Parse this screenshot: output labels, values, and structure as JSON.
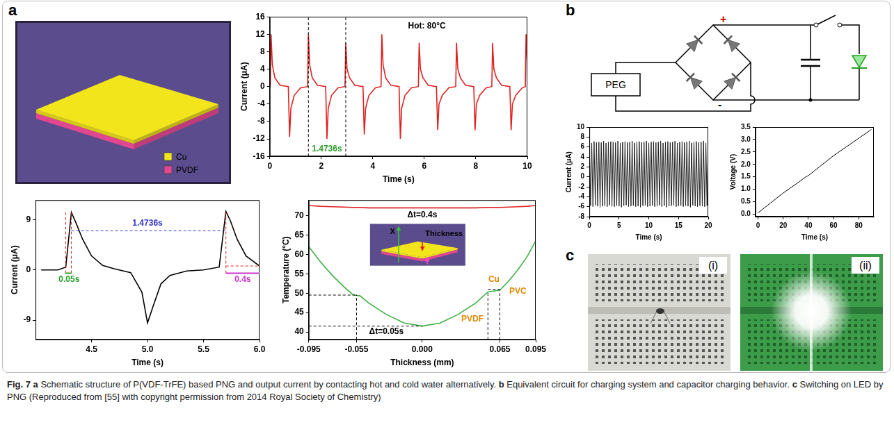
{
  "panel_labels": [
    "a",
    "b",
    "c"
  ],
  "schematic": {
    "layers": [
      {
        "name": "Cu",
        "color": "#f2e51b"
      },
      {
        "name": "PVDF",
        "color": "#e0478f"
      }
    ]
  },
  "circuit": {
    "source": "PEG",
    "positive": "+",
    "negative": "-"
  },
  "photos": [
    {
      "label": "(i)"
    },
    {
      "label": "(ii)"
    }
  ],
  "caption": {
    "label": "Fig. 7",
    "parts": [
      {
        "letter": "a",
        "text": "Schematic structure of P(VDF-TrFE) based PNG and output current by contacting hot and cold water alternatively."
      },
      {
        "letter": "b",
        "text": "Equivalent circuit for charging system and capacitor charging behavior."
      },
      {
        "letter": "c",
        "text": "Switching on LED by PNG"
      }
    ],
    "source": "(Reproduced from [55] with copyright permission from 2014 Royal Society of Chemistry)"
  },
  "chart_data": [
    {
      "type": "line",
      "x_label": "Time (s)",
      "y_label": "Current (μA)",
      "x": [
        0.02,
        0.05,
        0.1,
        0.2,
        0.4,
        0.72,
        0.77,
        0.82,
        0.95,
        1.2,
        1.47,
        1.5,
        1.55,
        1.65,
        1.85,
        2.17,
        2.22,
        2.27,
        2.4,
        2.65,
        2.92,
        2.95,
        3.0,
        3.1,
        3.3,
        3.62,
        3.67,
        3.72,
        3.85,
        4.1,
        4.32,
        4.35,
        4.4,
        4.5,
        4.7,
        5.02,
        5.07,
        5.12,
        5.25,
        5.5,
        5.77,
        5.8,
        5.85,
        5.95,
        6.15,
        6.47,
        6.52,
        6.57,
        6.7,
        6.95,
        7.22,
        7.25,
        7.3,
        7.4,
        7.6,
        7.92,
        7.97,
        8.02,
        8.15,
        8.4,
        8.62,
        8.65,
        8.7,
        8.8,
        9.0,
        9.32,
        9.37,
        9.42,
        9.55,
        9.8,
        9.92,
        9.95,
        10
      ],
      "values": [
        0,
        12,
        5,
        2,
        0.3,
        0,
        -11.5,
        -5,
        -2,
        -0.3,
        0,
        12,
        5,
        2,
        0.3,
        0,
        -12,
        -5,
        -2,
        -0.3,
        0,
        10,
        4,
        2,
        0.3,
        0,
        -11,
        -5,
        -2,
        -0.3,
        0,
        12,
        5,
        2,
        0.3,
        0,
        -12,
        -5,
        -2,
        -0.3,
        0,
        10,
        4,
        2,
        0.3,
        0,
        -10,
        -4,
        -2,
        -0.3,
        0,
        10,
        4,
        2,
        0.3,
        0,
        -10,
        -4,
        -2,
        -0.3,
        0,
        10,
        4,
        2,
        0.3,
        0,
        -10,
        -4,
        -2,
        -0.3,
        0,
        12,
        5
      ],
      "color": "#e02020",
      "xlim": [
        0,
        10
      ],
      "xticks": [
        0,
        2,
        4,
        6,
        8,
        10
      ],
      "ylim": [
        -16,
        16
      ],
      "yticks": [
        -16,
        -12,
        -8,
        -4,
        0,
        4,
        8,
        12,
        16
      ],
      "grid": false,
      "guides": [
        {
          "x": [
            1.5,
            1.5
          ],
          "y": [
            -16,
            16
          ],
          "color": "#000000",
          "line_style": "dashed"
        },
        {
          "x": [
            2.95,
            2.95
          ],
          "y": [
            -16,
            16
          ],
          "color": "#000000",
          "line_style": "dashed"
        }
      ],
      "annotations": [
        {
          "text": "Hot: 80°C",
          "x": 6.1,
          "y": 13.8,
          "color": "#000000"
        },
        {
          "text": "1.4736s",
          "x": 2.22,
          "y": -14.3,
          "color": "#2a9d2a"
        }
      ]
    },
    {
      "type": "line",
      "x_label": "Time (s)",
      "y_label": "Current (μA)",
      "x": [
        4.05,
        4.2,
        4.27,
        4.32,
        4.36,
        4.42,
        4.5,
        4.6,
        4.7,
        4.85,
        4.95,
        5.0,
        5.05,
        5.12,
        5.2,
        5.35,
        5.5,
        5.64,
        5.7,
        5.74,
        5.8,
        5.88,
        6.0
      ],
      "values": [
        0,
        0,
        0.5,
        10.3,
        8.5,
        5.5,
        2.5,
        0.8,
        0.2,
        -0.5,
        -4,
        -9.5,
        -6.5,
        -2.5,
        -1,
        -0.2,
        0,
        0.5,
        10.5,
        8.8,
        5.5,
        2.5,
        0.7
      ],
      "color": "#000000",
      "xlim": [
        4.0,
        6.0
      ],
      "xticks": [
        4.5,
        {
          "value": 5,
          "label": "5.0"
        },
        5.5,
        {
          "value": 6,
          "label": "6.0"
        }
      ],
      "ylim": [
        -12.5,
        12.5
      ],
      "yticks": [
        -9,
        0,
        9
      ],
      "grid": false,
      "guides": [
        {
          "x": [
            4.32,
            5.7
          ],
          "y": [
            7,
            7
          ],
          "color": "#3333cc",
          "line_style": "dashed"
        },
        {
          "x": [
            4.27,
            4.27
          ],
          "y": [
            -0.6,
            10.3
          ],
          "color": "#e02020",
          "line_style": "dashed"
        },
        {
          "x": [
            4.32,
            4.32
          ],
          "y": [
            -0.6,
            10.3
          ],
          "color": "#e02020",
          "line_style": "dashed"
        },
        {
          "x": [
            5.7,
            5.7
          ],
          "y": [
            -0.6,
            10.5
          ],
          "color": "#e02020",
          "line_style": "dashed"
        },
        {
          "x": [
            5.7,
            6.0
          ],
          "y": [
            0.7,
            0.7
          ],
          "color": "#e02020",
          "line_style": "dashed"
        },
        {
          "x": [
            4.27,
            4.32
          ],
          "y": [
            -0.6,
            -0.6
          ],
          "color": "#2a9d2a",
          "line_style": "solid"
        },
        {
          "x": [
            5.7,
            6.0
          ],
          "y": [
            -0.6,
            -0.6
          ],
          "color": "#cc33cc",
          "line_style": "solid"
        }
      ],
      "annotations": [
        {
          "text": "1.4736s",
          "x": 5.0,
          "y": 8.3,
          "color": "#3333cc"
        },
        {
          "text": "0.05s",
          "x": 4.3,
          "y": -1.7,
          "color": "#2a9d2a"
        },
        {
          "text": "0.4s",
          "x": 5.85,
          "y": -1.7,
          "color": "#cc33cc"
        }
      ]
    },
    {
      "type": "line",
      "x_label": "Thickness (mm)",
      "y_label": "Temperature (°C)",
      "x": [
        -0.095,
        -0.085,
        -0.075,
        -0.065,
        -0.058,
        -0.052,
        -0.045,
        -0.03,
        -0.015,
        0,
        0.015,
        0.03,
        0.045,
        0.055,
        0.065,
        0.072,
        0.08,
        0.088,
        0.095
      ],
      "series": [
        {
          "values": [
            72.6,
            72.4,
            72.3,
            72.2,
            72.1,
            72.1,
            72.0,
            72.0,
            72.0,
            72.0,
            72.0,
            72.0,
            72.0,
            72.1,
            72.1,
            72.2,
            72.3,
            72.4,
            72.6
          ],
          "color": "#e02020"
        },
        {
          "values": [
            62,
            58,
            54.5,
            51.5,
            49.6,
            49.3,
            47.5,
            44.5,
            42.3,
            41.5,
            42.3,
            44.5,
            47.5,
            50.3,
            50.8,
            53,
            56,
            59.5,
            63.5
          ],
          "color": "#3cb043"
        }
      ],
      "xlim": [
        -0.095,
        0.095
      ],
      "xticks": [
        -0.095,
        -0.055,
        {
          "value": 0,
          "label": "0.000"
        },
        0.065,
        0.095
      ],
      "ylim": [
        38,
        74
      ],
      "yticks": [
        40,
        45,
        50,
        55,
        60,
        65,
        70
      ],
      "grid": false,
      "guides": [
        {
          "x": [
            -0.095,
            -0.055
          ],
          "y": [
            49.5,
            49.5
          ],
          "color": "#000000",
          "line_style": "dashed"
        },
        {
          "x": [
            -0.055,
            -0.055
          ],
          "y": [
            38,
            49.5
          ],
          "color": "#000000",
          "line_style": "dashed"
        },
        {
          "x": [
            -0.095,
            0
          ],
          "y": [
            41.5,
            41.5
          ],
          "color": "#000000",
          "line_style": "dashed"
        },
        {
          "x": [
            0.055,
            0.055
          ],
          "y": [
            38,
            50.3
          ],
          "color": "#000000",
          "line_style": "dashed"
        },
        {
          "x": [
            0.065,
            0.065
          ],
          "y": [
            38,
            50.8
          ],
          "color": "#000000",
          "line_style": "dashed"
        },
        {
          "x": [
            0.055,
            0.065
          ],
          "y": [
            51,
            51
          ],
          "color": "#000000",
          "line_style": "dashed"
        }
      ],
      "annotations": [
        {
          "text": "Δt=0.4s",
          "x": 0,
          "y": 70.2,
          "color": "#000000"
        },
        {
          "text": "Δt=0.05s",
          "x": -0.03,
          "y": 40.0,
          "color": "#000000"
        },
        {
          "text": "PVDF",
          "x": 0.042,
          "y": 43.3,
          "color": "#e08a00"
        },
        {
          "text": "Cu",
          "x": 0.06,
          "y": 53.5,
          "color": "#e08a00"
        },
        {
          "text": "PVC",
          "x": 0.08,
          "y": 50.5,
          "color": "#e08a00"
        }
      ],
      "inset": {
        "axis_label": "X",
        "thickness_label": "Thickness"
      }
    },
    {
      "type": "line",
      "x_label": "Time (s)",
      "y_label": "Current (μA)",
      "x": [
        0,
        0.2,
        0.4,
        0.6,
        0.8,
        1,
        1.2,
        1.4,
        1.6,
        1.8,
        2,
        2.2,
        2.4,
        2.6,
        2.8,
        3,
        3.2,
        3.4,
        3.6,
        3.8,
        4,
        4.2,
        4.4,
        4.6,
        4.8,
        5,
        5.2,
        5.4,
        5.6,
        5.8,
        6,
        6.2,
        6.4,
        6.6,
        6.8,
        7,
        7.2,
        7.4,
        7.6,
        7.8,
        8,
        8.2,
        8.4,
        8.6,
        8.8,
        9,
        9.2,
        9.4,
        9.6,
        9.8,
        10,
        10.2,
        10.4,
        10.6,
        10.8,
        11,
        11.2,
        11.4,
        11.6,
        11.8,
        12,
        12.2,
        12.4,
        12.6,
        12.8,
        13,
        13.2,
        13.4,
        13.6,
        13.8,
        14,
        14.2,
        14.4,
        14.6,
        14.8,
        15,
        15.2,
        15.4,
        15.6,
        15.8,
        16,
        16.2,
        16.4,
        16.6,
        16.8,
        17,
        17.2,
        17.4,
        17.6,
        17.8,
        18,
        18.2,
        18.4,
        18.6,
        18.8,
        19,
        19.2,
        19.4,
        19.6,
        19.8,
        20
      ],
      "values": [
        7,
        -5.8,
        6.8,
        -6,
        7.1,
        -5.7,
        6.9,
        -5.9,
        7,
        -6.1,
        6.9,
        -5.9,
        7.2,
        -5.8,
        6.8,
        -6,
        7,
        -5.7,
        7.1,
        -5.9,
        7,
        -6,
        6.9,
        -5.8,
        7.2,
        -5.9,
        6.8,
        -6.1,
        7,
        -5.8,
        7.1,
        -5.7,
        6.9,
        -6,
        7,
        -5.9,
        7.2,
        -5.8,
        6.8,
        -6,
        7,
        -5.9,
        7.1,
        -6.1,
        6.9,
        -5.8,
        7,
        -5.7,
        7.2,
        -6,
        6.8,
        -5.9,
        7,
        -5.8,
        7.1,
        -6,
        6.9,
        -5.9,
        7,
        -5.7,
        7.2,
        -6,
        6.8,
        -5.8,
        7,
        -6.1,
        7.1,
        -5.9,
        6.9,
        -5.8,
        7,
        -5.7,
        7.2,
        -6,
        6.8,
        -5.9,
        7,
        -5.8,
        7.1,
        -6,
        6.9,
        -5.8,
        7,
        -5.9,
        7.2,
        -6.1,
        6.8,
        -5.7,
        7,
        -5.9,
        7.1,
        -6,
        6.9,
        -5.8,
        7,
        -5.9,
        7.2,
        -6,
        6.8,
        -5.8,
        7
      ],
      "color": "#222222",
      "xlim": [
        0,
        20
      ],
      "xticks": [
        0,
        5,
        10,
        15,
        20
      ],
      "ylim": [
        -8,
        10
      ],
      "yticks": [
        -8,
        -6,
        -4,
        -2,
        0,
        2,
        4,
        6,
        8,
        10
      ],
      "grid": false
    },
    {
      "type": "line",
      "x_label": "Time (s)",
      "y_label": "Voltage (V)",
      "x": [
        0,
        10,
        20,
        30,
        38,
        40,
        50,
        60,
        70,
        80,
        90
      ],
      "values": [
        0.05,
        0.45,
        0.85,
        1.2,
        1.5,
        1.55,
        1.95,
        2.35,
        2.7,
        3.05,
        3.4
      ],
      "color": "#000000",
      "xlim": [
        -2,
        92
      ],
      "xticks": [
        0,
        20,
        40,
        60,
        80
      ],
      "ylim": [
        -0.1,
        3.5
      ],
      "yticks": [
        {
          "value": 0,
          "label": "0.0"
        },
        0.5,
        {
          "value": 1,
          "label": "1.0"
        },
        1.5,
        {
          "value": 2,
          "label": "2.0"
        },
        2.5,
        {
          "value": 3,
          "label": "3.0"
        },
        3.5
      ],
      "grid": false
    }
  ]
}
